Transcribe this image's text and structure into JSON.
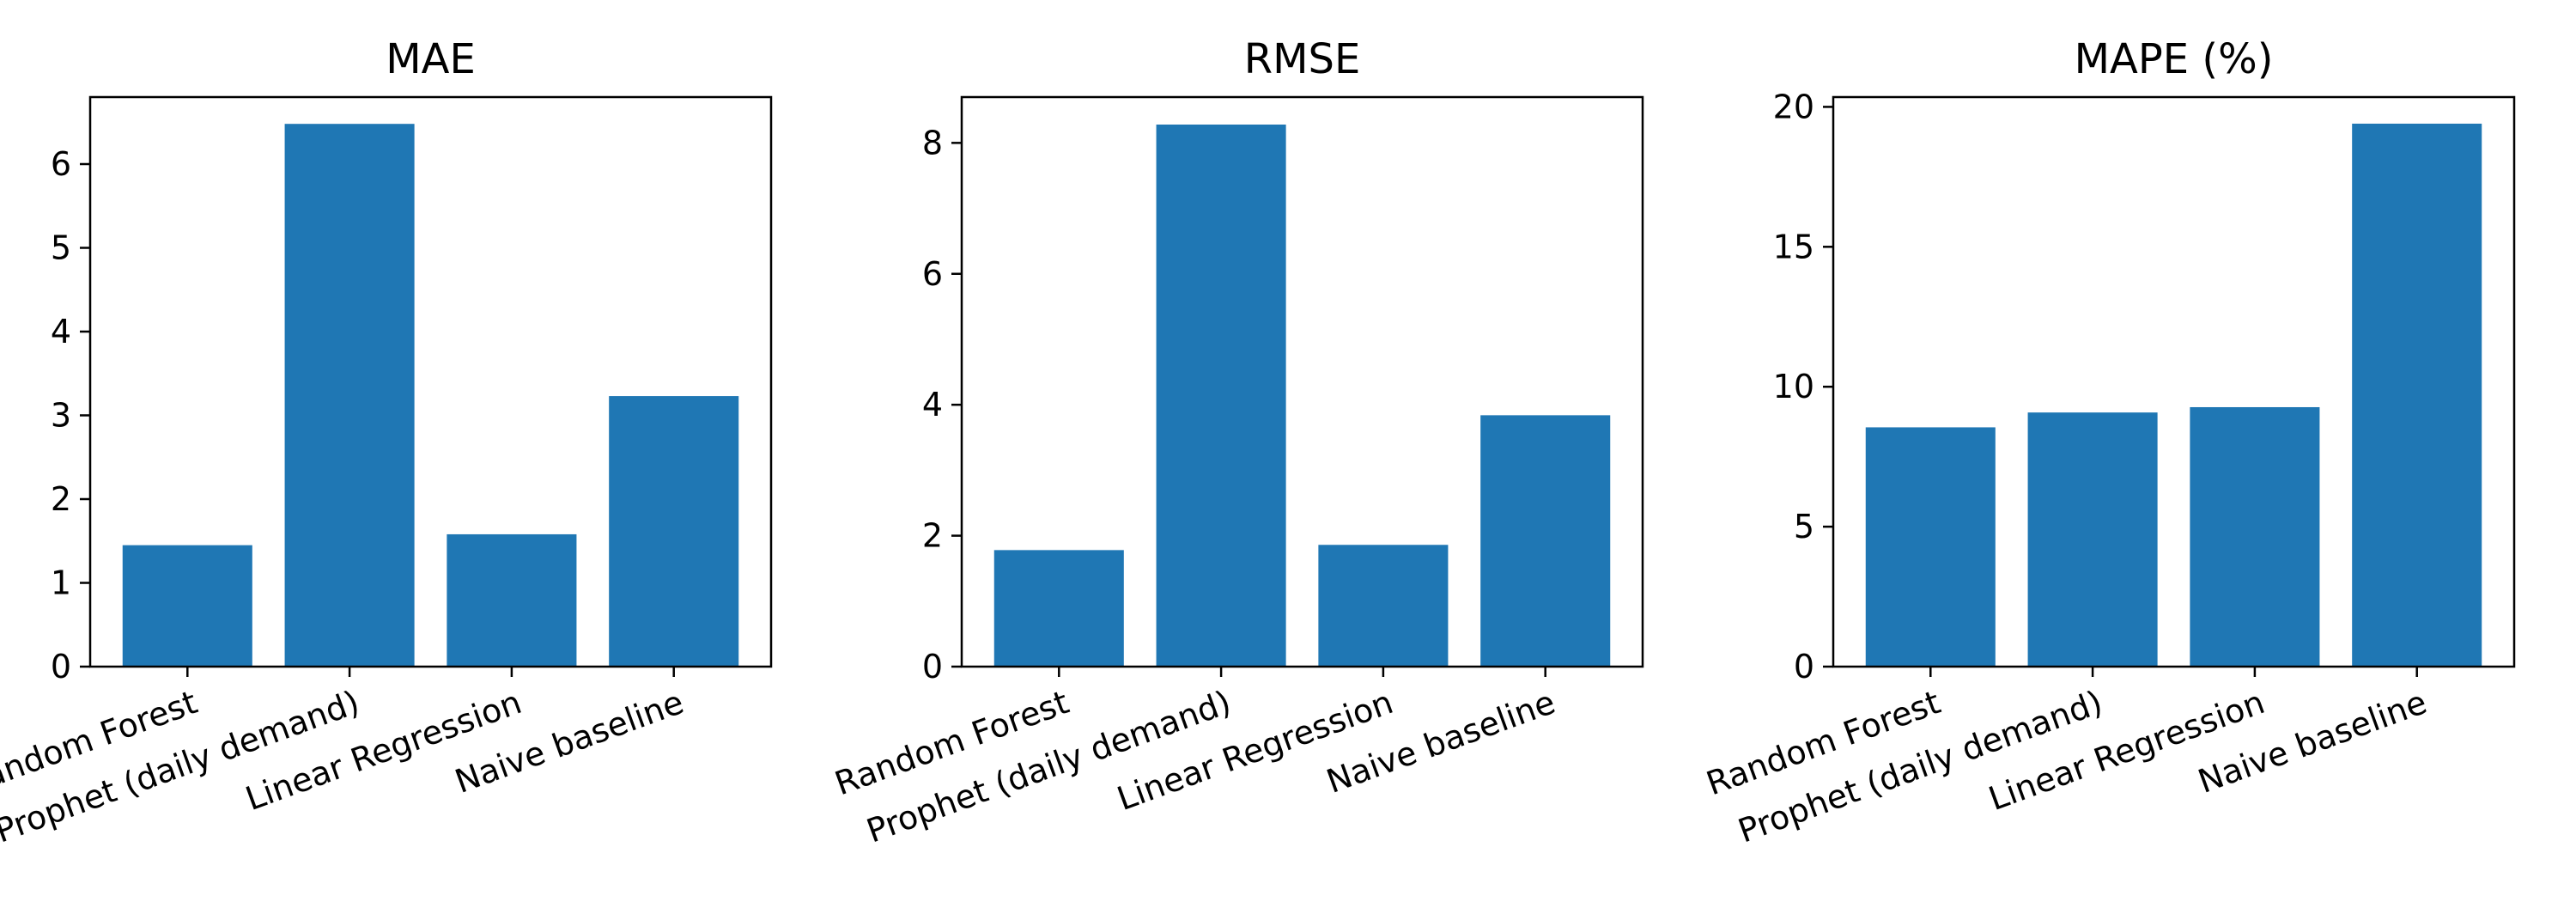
{
  "chart_data": [
    {
      "type": "bar",
      "title": "MAE",
      "xlabel": "",
      "ylabel": "",
      "categories": [
        "Random Forest",
        "Prophet (daily demand)",
        "Linear Regression",
        "Naive baseline"
      ],
      "values": [
        1.45,
        6.48,
        1.58,
        3.23
      ],
      "ylim": [
        0,
        6.8
      ],
      "yticks": [
        0,
        1,
        2,
        3,
        4,
        5,
        6
      ],
      "grid": false,
      "color": "#1f77b4"
    },
    {
      "type": "bar",
      "title": "RMSE",
      "xlabel": "",
      "ylabel": "",
      "categories": [
        "Random Forest",
        "Prophet (daily demand)",
        "Linear Regression",
        "Naive baseline"
      ],
      "values": [
        1.78,
        8.28,
        1.86,
        3.84
      ],
      "ylim": [
        0,
        8.7
      ],
      "yticks": [
        0,
        2,
        4,
        6,
        8
      ],
      "grid": false,
      "color": "#1f77b4"
    },
    {
      "type": "bar",
      "title": "MAPE (%)",
      "xlabel": "",
      "ylabel": "",
      "categories": [
        "Random Forest",
        "Prophet (daily demand)",
        "Linear Regression",
        "Naive baseline"
      ],
      "values": [
        8.55,
        9.08,
        9.27,
        19.4
      ],
      "ylim": [
        0,
        20.35
      ],
      "yticks": [
        0,
        5,
        10,
        15,
        20
      ],
      "grid": false,
      "color": "#1f77b4"
    }
  ]
}
